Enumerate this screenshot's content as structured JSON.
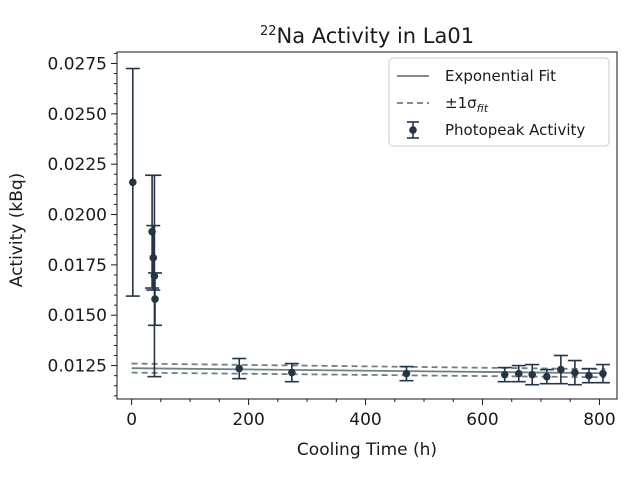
{
  "chart_data": {
    "type": "scatter",
    "title_super": "22",
    "title_main": "Na Activity in La01",
    "xlabel": "Cooling Time (h)",
    "ylabel": "Activity (kBq)",
    "xlim": [
      -25,
      830
    ],
    "ylim": [
      0.01084,
      0.02807
    ],
    "x_ticks": [
      0,
      200,
      400,
      600,
      800
    ],
    "y_ticks": [
      0.0125,
      0.015,
      0.0175,
      0.02,
      0.0225,
      0.025,
      0.0275
    ],
    "y_tick_labels": [
      "0.0125",
      "0.0150",
      "0.0175",
      "0.0200",
      "0.0225",
      "0.0250",
      "0.0275"
    ],
    "grid": false,
    "legend_position": "top-right",
    "legend": {
      "fit_label": "Exponential Fit",
      "sigma_label": "±1σ",
      "sigma_sub": "fit",
      "data_label": "Photopeak Activity"
    },
    "colors": {
      "data": "#253547",
      "fit": "#6f7f82",
      "sigma": "#6f7f82",
      "axis": "#1a1a1a"
    },
    "series": [
      {
        "name": "Photopeak Activity",
        "points": [
          {
            "x": 2,
            "y": 0.0216,
            "err": 0.00565
          },
          {
            "x": 35,
            "y": 0.01915,
            "err": 0.0028
          },
          {
            "x": 37,
            "y": 0.01785,
            "err": 0.0016
          },
          {
            "x": 39,
            "y": 0.01695,
            "err": 0.005
          },
          {
            "x": 40,
            "y": 0.0158,
            "err": 0.0013
          },
          {
            "x": 184,
            "y": 0.01235,
            "err": 0.0005
          },
          {
            "x": 274,
            "y": 0.01215,
            "err": 0.00045
          },
          {
            "x": 470,
            "y": 0.0121,
            "err": 0.00035
          },
          {
            "x": 638,
            "y": 0.01205,
            "err": 0.00035
          },
          {
            "x": 662,
            "y": 0.0121,
            "err": 0.0004
          },
          {
            "x": 685,
            "y": 0.01205,
            "err": 0.0005
          },
          {
            "x": 710,
            "y": 0.01195,
            "err": 0.00035
          },
          {
            "x": 734,
            "y": 0.0123,
            "err": 0.0007
          },
          {
            "x": 758,
            "y": 0.01215,
            "err": 0.0006
          },
          {
            "x": 782,
            "y": 0.012,
            "err": 0.00035
          },
          {
            "x": 806,
            "y": 0.0121,
            "err": 0.00045
          }
        ]
      },
      {
        "name": "Exponential Fit",
        "x": [
          0,
          810
        ],
        "y": [
          0.01237,
          0.01212
        ]
      },
      {
        "name": "±1σfit upper",
        "x": [
          0,
          810
        ],
        "y": [
          0.0126,
          0.01232
        ]
      },
      {
        "name": "±1σfit lower",
        "x": [
          0,
          810
        ],
        "y": [
          0.01215,
          0.01192
        ]
      }
    ]
  }
}
